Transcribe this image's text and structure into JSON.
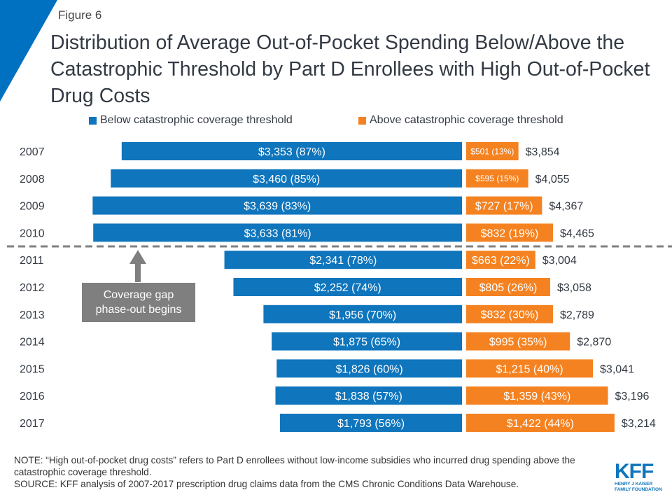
{
  "figure_label": "Figure 6",
  "title": "Distribution of Average Out-of-Pocket Spending Below/Above the Catastrophic Threshold by Part D Enrollees with High Out-of-Pocket Drug Costs",
  "colors": {
    "below": "#0f75bc",
    "above": "#f58220",
    "accent": "#0070c0"
  },
  "annotation": {
    "line1": "Coverage gap",
    "line2": "phase-out begins"
  },
  "note": "NOTE: “High out-of-pocket drug costs” refers to Part D enrollees without low-income subsidies who incurred drug spending above the catastrophic coverage threshold.",
  "source": "SOURCE: KFF analysis of 2007-2017 prescription drug claims data from the CMS Chronic Conditions Data Warehouse.",
  "logo": {
    "name": "KFF",
    "line1": "HENRY J KAISER",
    "line2": "FAMILY FOUNDATION"
  },
  "chart_data": {
    "type": "bar",
    "orientation": "horizontal-diverging",
    "categories": [
      "2007",
      "2008",
      "2009",
      "2010",
      "2011",
      "2012",
      "2013",
      "2014",
      "2015",
      "2016",
      "2017"
    ],
    "series": [
      {
        "name": "Below catastrophic coverage threshold",
        "values": [
          3353,
          3460,
          3639,
          3633,
          2341,
          2252,
          1956,
          1875,
          1826,
          1838,
          1793
        ],
        "percents": [
          87,
          85,
          83,
          81,
          78,
          74,
          70,
          65,
          60,
          57,
          56
        ],
        "labels": [
          "$3,353 (87%)",
          "$3,460 (85%)",
          "$3,639 (83%)",
          "$3,633 (81%)",
          "$2,341 (78%)",
          "$2,252 (74%)",
          "$1,956 (70%)",
          "$1,875 (65%)",
          "$1,826 (60%)",
          "$1,838 (57%)",
          "$1,793 (56%)"
        ]
      },
      {
        "name": "Above catastrophic coverage threshold",
        "values": [
          501,
          595,
          727,
          832,
          663,
          805,
          832,
          995,
          1215,
          1359,
          1422
        ],
        "percents": [
          13,
          15,
          17,
          19,
          22,
          26,
          30,
          35,
          40,
          43,
          44
        ],
        "labels": [
          "$501 (13%)",
          "$595 (15%)",
          "$727 (17%)",
          "$832 (19%)",
          "$663 (22%)",
          "$805 (26%)",
          "$832 (30%)",
          "$995 (35%)",
          "$1,215 (40%)",
          "$1,359 (43%)",
          "$1,422 (44%)"
        ]
      }
    ],
    "totals": [
      "$3,854",
      "$4,055",
      "$4,367",
      "$4,465",
      "$3,004",
      "$3,058",
      "$2,789",
      "$2,870",
      "$3,041",
      "$3,196",
      "$3,214"
    ],
    "legend": "top",
    "divider_after": "2010"
  }
}
